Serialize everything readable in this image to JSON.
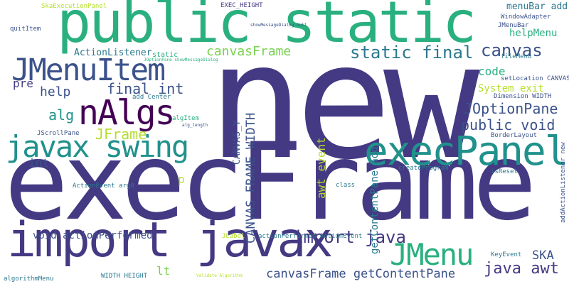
{
  "palette": {
    "purple": "#443983",
    "indigo": "#3b528b",
    "teal": "#2a788e",
    "cyan": "#21918c",
    "green": "#2ab07f",
    "lime": "#7ad151",
    "yellow": "#b5de2b",
    "dark": "#440154"
  },
  "words": [
    {
      "text": "new",
      "color": "purple"
    },
    {
      "text": "execFrame",
      "color": "purple"
    },
    {
      "text": "public static",
      "color": "green"
    },
    {
      "text": "import javax",
      "color": "purple"
    },
    {
      "text": "JMenuItem",
      "color": "indigo"
    },
    {
      "text": "javax swing",
      "color": "cyan"
    },
    {
      "text": "execPanel",
      "color": "cyan"
    },
    {
      "text": "nAlgs",
      "color": "dark"
    },
    {
      "text": "JMenu",
      "color": "green"
    },
    {
      "text": "static final",
      "color": "teal"
    },
    {
      "text": "canvasFrame",
      "color": "lime"
    },
    {
      "text": "canvas",
      "color": "indigo"
    },
    {
      "text": "final int",
      "color": "indigo"
    },
    {
      "text": "help",
      "color": "indigo"
    },
    {
      "text": "alg",
      "color": "cyan"
    },
    {
      "text": "JFrame",
      "color": "yellow"
    },
    {
      "text": "JOptionPane",
      "color": "indigo"
    },
    {
      "text": "public void",
      "color": "indigo"
    },
    {
      "text": "import java",
      "color": "purple"
    },
    {
      "text": "java awt",
      "color": "purple"
    },
    {
      "text": "canvasFrame getContentPane",
      "color": "indigo"
    },
    {
      "text": "void actionPerformed",
      "color": "indigo"
    },
    {
      "text": "CANVAS_FRAME_WIDTH",
      "color": "indigo"
    },
    {
      "text": "CANVAS_Y",
      "color": "indigo"
    },
    {
      "text": "getContentPane add",
      "color": "teal"
    },
    {
      "text": "awt event",
      "color": "yellow"
    },
    {
      "text": "SKA",
      "color": "indigo"
    },
    {
      "text": "lt",
      "color": "lime"
    },
    {
      "text": "int",
      "color": "indigo"
    },
    {
      "text": "p",
      "color": "yellow"
    },
    {
      "text": "pre",
      "color": "purple"
    },
    {
      "text": "code",
      "color": "green"
    },
    {
      "text": "System exit",
      "color": "yellow"
    },
    {
      "text": "helpMenu",
      "color": "green"
    },
    {
      "text": "menuBar add",
      "color": "teal"
    },
    {
      "text": "ActionListener",
      "color": "teal"
    },
    {
      "text": "static",
      "color": "green"
    },
    {
      "text": "JMenuBar",
      "color": "indigo"
    },
    {
      "text": "WindowAdapter",
      "color": "indigo"
    },
    {
      "text": "quitItem",
      "color": "indigo"
    },
    {
      "text": "SkaExecutionPanel",
      "color": "yellow"
    },
    {
      "text": "EXEC_HEIGHT",
      "color": "purple"
    },
    {
      "text": "JScrollPane",
      "color": "indigo"
    },
    {
      "text": "algItem",
      "color": "green"
    },
    {
      "text": "add Center",
      "color": "teal"
    },
    {
      "text": "ActionEvent arg0",
      "color": "teal"
    },
    {
      "text": "createProgram",
      "color": "teal"
    },
    {
      "text": "isReset",
      "color": "teal"
    },
    {
      "text": "class",
      "color": "teal"
    },
    {
      "text": "JLabel",
      "color": "yellow"
    },
    {
      "text": "actionPerformed ActionEvent",
      "color": "teal"
    },
    {
      "text": "WIDTH HEIGHT",
      "color": "teal"
    },
    {
      "text": "algorithmMenu",
      "color": "teal"
    },
    {
      "text": "BorderLayout",
      "color": "indigo"
    },
    {
      "text": "Dimension WIDTH",
      "color": "indigo"
    },
    {
      "text": "setLocation CANVAS_X",
      "color": "indigo"
    },
    {
      "text": "fileMenu",
      "color": "teal"
    },
    {
      "text": "KeyEvent",
      "color": "teal"
    },
    {
      "text": "addActionListener new",
      "color": "indigo"
    },
    {
      "text": "alg_length",
      "color": "indigo"
    },
    {
      "text": "Validate Algorithm",
      "color": "yellow"
    },
    {
      "text": "showMessageDialog null",
      "color": "indigo"
    },
    {
      "text": "JOptionPane showMessageDialog",
      "color": "green"
    }
  ]
}
